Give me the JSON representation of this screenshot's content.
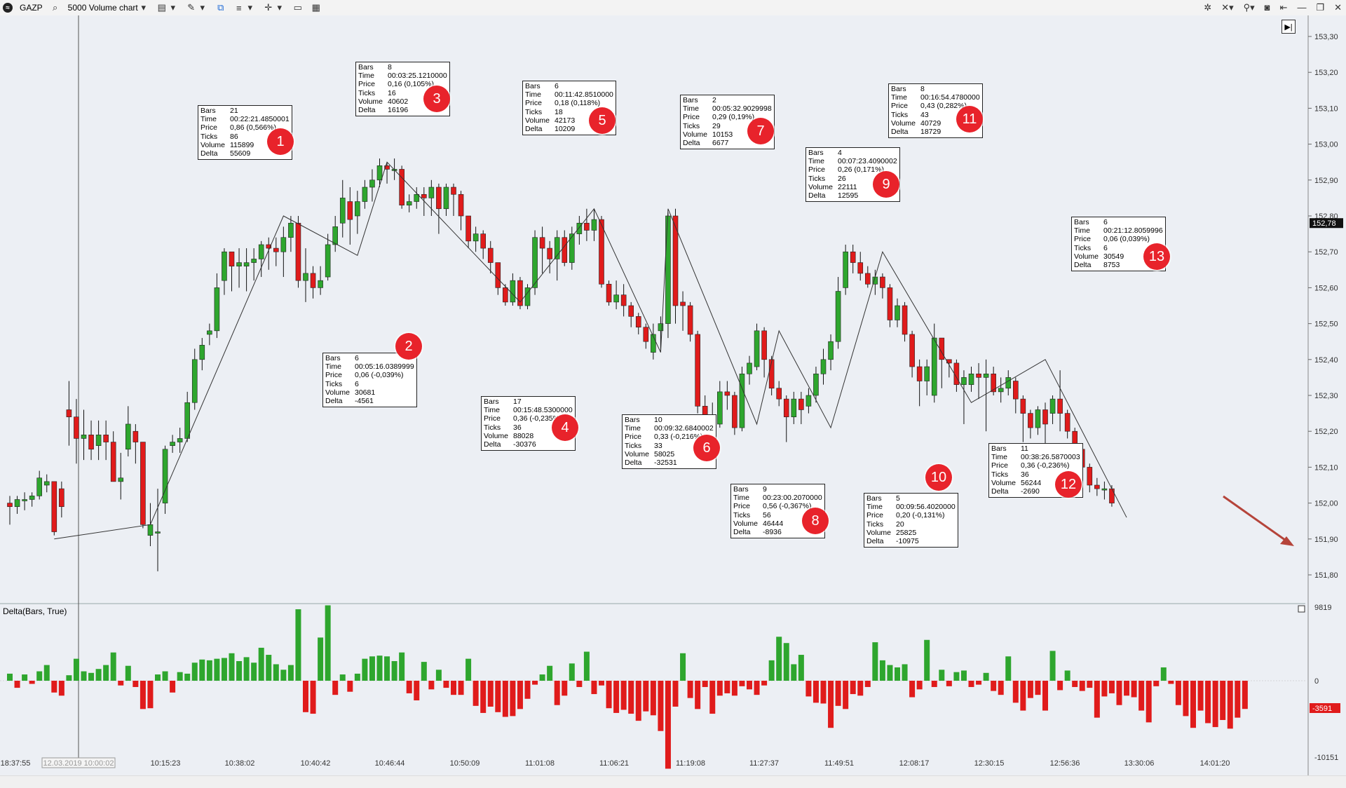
{
  "toolbar": {
    "logo": "≈",
    "symbol": "GAZP",
    "chart_type": "5000 Volume chart",
    "icons": [
      "search-icon",
      "chart-style-icon",
      "pencil-icon",
      "indicator-icon",
      "template-icon",
      "crosshair-icon",
      "window-icon",
      "layout-icon"
    ],
    "right_icons": [
      "settings-icon",
      "cursor-icon",
      "link-icon",
      "camera-icon",
      "back-icon",
      "minimize-icon",
      "restore-icon",
      "close-icon"
    ]
  },
  "colors": {
    "up": "#2ea62e",
    "down": "#e01b1b",
    "bg": "#eceff4",
    "marker": "#e8232b",
    "arrow": "#b5443a"
  },
  "price_axis": {
    "labels": [
      "153,30",
      "153,20",
      "153,10",
      "153,00",
      "152,90",
      "152,80",
      "152,70",
      "152,60",
      "152,50",
      "152,40",
      "152,30",
      "152,20",
      "152,10",
      "152,00",
      "151,90",
      "151,80"
    ],
    "last_price": "152,78"
  },
  "delta_panel": {
    "title": "Delta(Bars, True)",
    "axis_labels": [
      "9819",
      "0",
      "-10151"
    ],
    "last_value": "-3591"
  },
  "time_axis": {
    "cursor_label": "12.03.2019 10:00:02",
    "labels": [
      "18:37:55",
      "10:15:23",
      "10:38:02",
      "10:40:42",
      "10:46:44",
      "10:50:09",
      "11:01:08",
      "11:06:21",
      "11:19:08",
      "11:27:37",
      "11:49:51",
      "12:08:17",
      "12:30:15",
      "12:56:36",
      "13:30:06",
      "14:01:20"
    ]
  },
  "swings": [
    {
      "n": "1",
      "bars": "21",
      "time": "00:22:21.4850001",
      "price": "0,86 (0,566%)",
      "ticks": "86",
      "volume": "115899",
      "delta": "55609"
    },
    {
      "n": "2",
      "bars": "6",
      "time": "00:05:16.0389999",
      "price": "0,06 (-0,039%)",
      "ticks": "6",
      "volume": "30681",
      "delta": "-4561"
    },
    {
      "n": "3",
      "bars": "8",
      "time": "00:03:25.1210000",
      "price": "0,16 (0,105%)",
      "ticks": "16",
      "volume": "40602",
      "delta": "16196"
    },
    {
      "n": "4",
      "bars": "17",
      "time": "00:15:48.5300000",
      "price": "0,36 (-0,235%)",
      "ticks": "36",
      "volume": "88028",
      "delta": "-30376"
    },
    {
      "n": "5",
      "bars": "6",
      "time": "00:11:42.8510000",
      "price": "0,18 (0,118%)",
      "ticks": "18",
      "volume": "42173",
      "delta": "10209"
    },
    {
      "n": "6",
      "bars": "10",
      "time": "00:09:32.6840002",
      "price": "0,33 (-0,216%)",
      "ticks": "33",
      "volume": "58025",
      "delta": "-32531"
    },
    {
      "n": "7",
      "bars": "2",
      "time": "00:05:32.9029998",
      "price": "0,29 (0,19%)",
      "ticks": "29",
      "volume": "10153",
      "delta": "6677"
    },
    {
      "n": "8",
      "bars": "9",
      "time": "00:23:00.2070000",
      "price": "0,56 (-0,367%)",
      "ticks": "56",
      "volume": "46444",
      "delta": "-8936"
    },
    {
      "n": "9",
      "bars": "4",
      "time": "00:07:23.4090002",
      "price": "0,26 (0,171%)",
      "ticks": "26",
      "volume": "22111",
      "delta": "12595"
    },
    {
      "n": "10",
      "bars": "5",
      "time": "00:09:56.4020000",
      "price": "0,20 (-0,131%)",
      "ticks": "20",
      "volume": "25825",
      "delta": "-10975"
    },
    {
      "n": "11",
      "bars": "8",
      "time": "00:16:54.4780000",
      "price": "0,43 (0,282%)",
      "ticks": "43",
      "volume": "40729",
      "delta": "18729"
    },
    {
      "n": "12",
      "bars": "11",
      "time": "00:38:26.5870003",
      "price": "0,36 (-0,236%)",
      "ticks": "36",
      "volume": "56244",
      "delta": "-2690"
    },
    {
      "n": "13",
      "bars": "6",
      "time": "00:21:12.8059996",
      "price": "0,06 (0,039%)",
      "ticks": "6",
      "volume": "30549",
      "delta": "8753"
    }
  ],
  "labels": {
    "bars": "Bars",
    "time": "Time",
    "price": "Price",
    "ticks": "Ticks",
    "volume": "Volume",
    "delta": "Delta"
  },
  "candles": [
    [
      152.0,
      151.99,
      152.02,
      151.94
    ],
    [
      151.99,
      152.01,
      152.02,
      151.97
    ],
    [
      152.01,
      152.01,
      152.03,
      151.98
    ],
    [
      152.01,
      152.02,
      152.03,
      151.99
    ],
    [
      152.02,
      152.07,
      152.09,
      152.01
    ],
    [
      152.05,
      152.06,
      152.08,
      152.03
    ],
    [
      152.06,
      151.92,
      152.06,
      151.91
    ],
    [
      152.04,
      151.99,
      152.06,
      151.96
    ],
    [
      152.26,
      152.24,
      152.34,
      152.16
    ],
    [
      152.24,
      152.18,
      152.29,
      152.11
    ],
    [
      152.18,
      152.19,
      152.26,
      152.12
    ],
    [
      152.19,
      152.15,
      152.23,
      152.12
    ],
    [
      152.16,
      152.19,
      152.23,
      152.12
    ],
    [
      152.19,
      152.17,
      152.23,
      152.12
    ],
    [
      152.17,
      152.06,
      152.2,
      152.06
    ],
    [
      152.06,
      152.07,
      152.14,
      152.01
    ],
    [
      152.15,
      152.22,
      152.27,
      152.13
    ],
    [
      152.2,
      152.17,
      152.22,
      152.11
    ],
    [
      152.17,
      151.94,
      152.17,
      151.93
    ],
    [
      151.91,
      151.94,
      152.0,
      151.88
    ],
    [
      151.92,
      151.92,
      152.04,
      151.81
    ],
    [
      152.0,
      152.15,
      152.16,
      151.97
    ],
    [
      152.16,
      152.17,
      152.19,
      152.14
    ],
    [
      152.17,
      152.18,
      152.21,
      152.14
    ],
    [
      152.18,
      152.28,
      152.31,
      152.17
    ],
    [
      152.28,
      152.4,
      152.43,
      152.26
    ],
    [
      152.4,
      152.44,
      152.46,
      152.37
    ],
    [
      152.47,
      152.48,
      152.5,
      152.44
    ],
    [
      152.48,
      152.6,
      152.64,
      152.46
    ],
    [
      152.62,
      152.7,
      152.71,
      152.58
    ],
    [
      152.7,
      152.66,
      152.7,
      152.59
    ],
    [
      152.66,
      152.67,
      152.71,
      152.6
    ],
    [
      152.66,
      152.67,
      152.71,
      152.59
    ],
    [
      152.67,
      152.68,
      152.71,
      152.62
    ],
    [
      152.68,
      152.72,
      152.73,
      152.63
    ],
    [
      152.72,
      152.71,
      152.74,
      152.65
    ],
    [
      152.71,
      152.7,
      152.74,
      152.66
    ],
    [
      152.7,
      152.74,
      152.77,
      152.63
    ],
    [
      152.74,
      152.78,
      152.8,
      152.7
    ],
    [
      152.78,
      152.62,
      152.8,
      152.6
    ],
    [
      152.62,
      152.64,
      152.71,
      152.56
    ],
    [
      152.64,
      152.6,
      152.66,
      152.57
    ],
    [
      152.6,
      152.62,
      152.66,
      152.58
    ],
    [
      152.63,
      152.72,
      152.75,
      152.62
    ],
    [
      152.72,
      152.77,
      152.8,
      152.7
    ],
    [
      152.78,
      152.85,
      152.9,
      152.74
    ],
    [
      152.84,
      152.79,
      152.88,
      152.72
    ],
    [
      152.8,
      152.84,
      152.87,
      152.75
    ],
    [
      152.84,
      152.88,
      152.9,
      152.82
    ],
    [
      152.88,
      152.9,
      152.93,
      152.84
    ],
    [
      152.9,
      152.94,
      152.96,
      152.88
    ],
    [
      152.94,
      152.93,
      152.95,
      152.89
    ],
    [
      152.93,
      152.93,
      152.96,
      152.9
    ],
    [
      152.93,
      152.83,
      152.94,
      152.82
    ],
    [
      152.83,
      152.84,
      152.86,
      152.81
    ],
    [
      152.84,
      152.86,
      152.88,
      152.82
    ],
    [
      152.86,
      152.85,
      152.88,
      152.8
    ],
    [
      152.85,
      152.88,
      152.9,
      152.8
    ],
    [
      152.88,
      152.82,
      152.89,
      152.75
    ],
    [
      152.82,
      152.88,
      152.89,
      152.8
    ],
    [
      152.88,
      152.86,
      152.89,
      152.8
    ],
    [
      152.86,
      152.8,
      152.87,
      152.76
    ],
    [
      152.8,
      152.73,
      152.8,
      152.71
    ],
    [
      152.73,
      152.75,
      152.77,
      152.7
    ],
    [
      152.75,
      152.71,
      152.76,
      152.68
    ],
    [
      152.71,
      152.67,
      152.73,
      152.64
    ],
    [
      152.67,
      152.6,
      152.67,
      152.58
    ],
    [
      152.6,
      152.56,
      152.61,
      152.55
    ],
    [
      152.56,
      152.62,
      152.64,
      152.55
    ],
    [
      152.62,
      152.55,
      152.63,
      152.54
    ],
    [
      152.55,
      152.6,
      152.61,
      152.54
    ],
    [
      152.6,
      152.74,
      152.76,
      152.58
    ],
    [
      152.74,
      152.71,
      152.77,
      152.64
    ],
    [
      152.71,
      152.68,
      152.73,
      152.64
    ],
    [
      152.68,
      152.74,
      152.76,
      152.62
    ],
    [
      152.74,
      152.67,
      152.76,
      152.66
    ],
    [
      152.67,
      152.75,
      152.77,
      152.65
    ],
    [
      152.75,
      152.78,
      152.8,
      152.72
    ],
    [
      152.78,
      152.76,
      152.82,
      152.73
    ],
    [
      152.76,
      152.79,
      152.82,
      152.73
    ],
    [
      152.79,
      152.61,
      152.8,
      152.6
    ],
    [
      152.61,
      152.56,
      152.62,
      152.55
    ],
    [
      152.56,
      152.58,
      152.62,
      152.54
    ],
    [
      152.58,
      152.55,
      152.61,
      152.52
    ],
    [
      152.55,
      152.52,
      152.56,
      152.49
    ],
    [
      152.52,
      152.49,
      152.53,
      152.47
    ],
    [
      152.49,
      152.45,
      152.5,
      152.43
    ],
    [
      152.42,
      152.47,
      152.5,
      152.4
    ],
    [
      152.48,
      152.5,
      152.52,
      152.42
    ],
    [
      152.5,
      152.8,
      152.81,
      152.46
    ],
    [
      152.8,
      152.55,
      152.82,
      152.5
    ],
    [
      152.56,
      152.55,
      152.59,
      152.48
    ],
    [
      152.55,
      152.47,
      152.56,
      152.45
    ],
    [
      152.47,
      152.27,
      152.48,
      152.25
    ],
    [
      152.27,
      152.24,
      152.3,
      152.22
    ],
    [
      152.24,
      152.22,
      152.28,
      152.18
    ],
    [
      152.22,
      152.31,
      152.34,
      152.21
    ],
    [
      152.31,
      152.3,
      152.34,
      152.26
    ],
    [
      152.3,
      152.21,
      152.31,
      152.19
    ],
    [
      152.21,
      152.36,
      152.38,
      152.2
    ],
    [
      152.36,
      152.39,
      152.41,
      152.33
    ],
    [
      152.38,
      152.48,
      152.5,
      152.37
    ],
    [
      152.48,
      152.4,
      152.49,
      152.35
    ],
    [
      152.4,
      152.32,
      152.41,
      152.3
    ],
    [
      152.32,
      152.29,
      152.34,
      152.27
    ],
    [
      152.29,
      152.24,
      152.3,
      152.17
    ],
    [
      152.24,
      152.29,
      152.31,
      152.22
    ],
    [
      152.29,
      152.26,
      152.31,
      152.22
    ],
    [
      152.27,
      152.3,
      152.32,
      152.25
    ],
    [
      152.3,
      152.36,
      152.38,
      152.28
    ],
    [
      152.36,
      152.4,
      152.43,
      152.33
    ],
    [
      152.4,
      152.45,
      152.47,
      152.37
    ],
    [
      152.45,
      152.59,
      152.63,
      152.43
    ],
    [
      152.6,
      152.7,
      152.72,
      152.58
    ],
    [
      152.7,
      152.67,
      152.72,
      152.64
    ],
    [
      152.67,
      152.64,
      152.7,
      152.62
    ],
    [
      152.64,
      152.61,
      152.66,
      152.6
    ],
    [
      152.61,
      152.63,
      152.65,
      152.58
    ],
    [
      152.63,
      152.6,
      152.64,
      152.57
    ],
    [
      152.6,
      152.51,
      152.61,
      152.49
    ],
    [
      152.51,
      152.55,
      152.57,
      152.49
    ],
    [
      152.55,
      152.47,
      152.56,
      152.45
    ],
    [
      152.47,
      152.38,
      152.48,
      152.35
    ],
    [
      152.38,
      152.34,
      152.4,
      152.27
    ],
    [
      152.34,
      152.38,
      152.4,
      152.3
    ],
    [
      152.3,
      152.46,
      152.5,
      152.28
    ],
    [
      152.46,
      152.4,
      152.46,
      152.32
    ],
    [
      152.4,
      152.39,
      152.4,
      152.35
    ],
    [
      152.39,
      152.33,
      152.4,
      152.31
    ],
    [
      152.33,
      152.35,
      152.37,
      152.22
    ],
    [
      152.33,
      152.36,
      152.38,
      152.31
    ],
    [
      152.36,
      152.35,
      152.39,
      152.29
    ],
    [
      152.35,
      152.36,
      152.4,
      152.2
    ],
    [
      152.36,
      152.31,
      152.38,
      152.3
    ],
    [
      152.31,
      152.32,
      152.35,
      152.28
    ],
    [
      152.32,
      152.35,
      152.37,
      152.3
    ],
    [
      152.34,
      152.29,
      152.35,
      152.25
    ],
    [
      152.29,
      152.25,
      152.3,
      152.17
    ],
    [
      152.25,
      152.21,
      152.26,
      152.18
    ],
    [
      152.21,
      152.26,
      152.27,
      152.19
    ],
    [
      152.26,
      152.22,
      152.28,
      152.16
    ],
    [
      152.25,
      152.29,
      152.3,
      152.22
    ],
    [
      152.29,
      152.25,
      152.37,
      152.2
    ],
    [
      152.25,
      152.2,
      152.26,
      152.18
    ],
    [
      152.2,
      152.15,
      152.21,
      152.13
    ],
    [
      152.15,
      152.1,
      152.16,
      152.07
    ],
    [
      152.1,
      152.05,
      152.11,
      152.03
    ],
    [
      152.05,
      152.04,
      152.07,
      152.02
    ],
    [
      152.04,
      152.04,
      152.06,
      152.01
    ],
    [
      152.04,
      152.0,
      152.05,
      151.99
    ]
  ],
  "deltas": [
    900,
    -900,
    800,
    -400,
    1200,
    2000,
    -1500,
    -1900,
    700,
    2800,
    1200,
    1000,
    1500,
    2000,
    3600,
    -600,
    1900,
    -800,
    -3600,
    -3500,
    800,
    1200,
    -1500,
    1100,
    900,
    2300,
    2700,
    2600,
    2800,
    2900,
    3500,
    2500,
    3000,
    2300,
    4200,
    3300,
    2100,
    1400,
    2000,
    9100,
    -4000,
    -4200,
    5500,
    9600,
    -1800,
    800,
    -1400,
    900,
    2800,
    3100,
    3200,
    3100,
    2500,
    3600,
    -1600,
    -2500,
    2400,
    -1100,
    1400,
    -900,
    -1800,
    -1800,
    2800,
    -3200,
    -4100,
    -3300,
    -4000,
    -4600,
    -4500,
    -3600,
    -2300,
    -500,
    800,
    1900,
    -3100,
    -1900,
    2200,
    -800,
    3700,
    -1700,
    -600,
    -3500,
    -4100,
    -3700,
    -4200,
    -5100,
    -3900,
    -4400,
    -6400,
    -11200,
    -3300,
    3500,
    -2200,
    -3600,
    -800,
    -4200,
    -1900,
    -1600,
    -1900,
    -700,
    -1100,
    -1800,
    -600,
    2600,
    5600,
    4800,
    2100,
    3300,
    -2000,
    -2800,
    -2900,
    -6000,
    -3200,
    -3600,
    -1700,
    -1900,
    -800,
    4900,
    2600,
    2000,
    1700,
    2100,
    -2100,
    -1100,
    5200,
    -800,
    1400,
    -700,
    1100,
    1300,
    -800,
    -500,
    1000,
    -1300,
    -1800,
    3100,
    -2800,
    -3800,
    -2200,
    -1800,
    -3800,
    3800,
    -1200,
    1300,
    -800,
    -1300,
    -900,
    -4700,
    -2000,
    -1600,
    -3100,
    -1900,
    -2100,
    -3800,
    -5300,
    -700,
    1700,
    -400,
    -3100,
    -4500,
    -6000,
    -3800,
    -5400,
    -5900,
    -5000,
    -6100,
    -4700,
    -3591
  ],
  "trend_points": [
    [
      6,
      151.9
    ],
    [
      19,
      151.94
    ],
    [
      37,
      152.8
    ],
    [
      47,
      152.69
    ],
    [
      51,
      152.95
    ],
    [
      69,
      152.56
    ],
    [
      79,
      152.82
    ],
    [
      88,
      152.42
    ],
    [
      89,
      152.82
    ],
    [
      101,
      152.22
    ],
    [
      104,
      152.48
    ],
    [
      111,
      152.21
    ],
    [
      118,
      152.7
    ],
    [
      130,
      152.28
    ],
    [
      140,
      152.4
    ],
    [
      151,
      151.96
    ]
  ],
  "markers_geo_note": ""
}
